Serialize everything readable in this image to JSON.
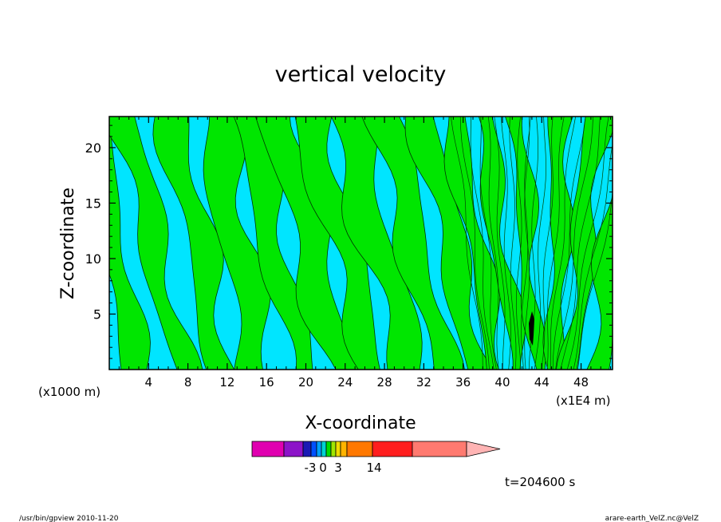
{
  "chart_data": {
    "type": "contour",
    "title": "vertical velocity",
    "xlabel": "X-coordinate",
    "ylabel": "Z-coordinate",
    "x_unit_note_left": "(x1000 m)",
    "x_unit_note_right": "(x1E4 m)",
    "xlim": [
      0,
      51.2
    ],
    "ylim": [
      0,
      22.8
    ],
    "x_ticks": [
      4,
      8,
      12,
      16,
      20,
      24,
      28,
      32,
      36,
      40,
      44,
      48
    ],
    "y_ticks": [
      5,
      10,
      15,
      20
    ],
    "fill_colors": {
      "negative": "#00e5ff",
      "positive": "#00e600",
      "strong": "#000000"
    },
    "colorbar": {
      "labels": [
        "-3",
        "0",
        "3",
        "14"
      ],
      "colors": [
        "#e000b0",
        "#8c14c8",
        "#1a1ab4",
        "#0050ff",
        "#00a0ff",
        "#00d2d2",
        "#00dc00",
        "#a0e600",
        "#f0dc00",
        "#ffb400",
        "#ff7800",
        "#ff1e1e",
        "#ff7a70"
      ],
      "arrow_color": "#ffb4b4"
    },
    "time_label": "t=204600 s"
  },
  "footer": {
    "left": "/usr/bin/gpview   2010-11-20",
    "right": "arare-earth_VelZ.nc@VelZ"
  }
}
